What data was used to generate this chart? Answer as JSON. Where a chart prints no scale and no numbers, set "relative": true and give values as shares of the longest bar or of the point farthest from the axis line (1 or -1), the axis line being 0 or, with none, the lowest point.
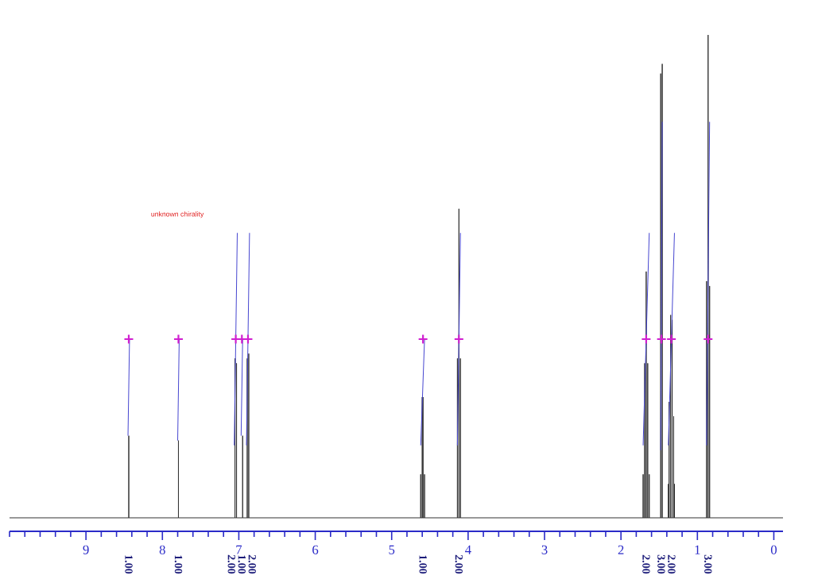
{
  "chart_data": {
    "type": "line",
    "relative": true,
    "xlim": [
      10,
      -0.12
    ],
    "xticks": [
      9,
      8,
      7,
      6,
      5,
      4,
      3,
      2,
      1,
      0
    ],
    "series": [
      {
        "color": "#333333",
        "x": [
          10,
          8.44,
          8.44,
          8.44,
          7.79,
          7.79,
          7.79,
          7.05,
          7.05,
          7.05,
          7.03,
          7.03,
          7.03,
          6.95,
          6.95,
          6.95,
          6.89,
          6.89,
          6.89,
          6.87,
          6.87,
          6.87,
          4.62,
          4.62,
          4.62,
          4.6,
          4.6,
          4.6,
          4.59,
          4.59,
          4.59,
          4.57,
          4.57,
          4.57,
          4.14,
          4.14,
          4.14,
          4.12,
          4.12,
          4.12,
          4.1,
          4.1,
          4.1,
          1.71,
          1.71,
          1.71,
          1.69,
          1.69,
          1.69,
          1.67,
          1.67,
          1.67,
          1.65,
          1.65,
          1.65,
          1.63,
          1.63,
          1.63,
          1.48,
          1.48,
          1.48,
          1.46,
          1.46,
          1.46,
          1.38,
          1.38,
          1.38,
          1.37,
          1.37,
          1.37,
          1.35,
          1.35,
          1.35,
          1.33,
          1.33,
          1.33,
          1.31,
          1.31,
          1.31,
          1.3,
          1.3,
          1.3,
          0.88,
          0.88,
          0.88,
          0.86,
          0.86,
          0.86,
          0.84,
          0.84,
          0.84,
          -0.12
        ],
        "values": [
          0,
          0,
          0.17,
          0,
          0,
          0.16,
          0,
          0,
          0.33,
          0,
          0,
          0.32,
          0,
          0,
          0.17,
          0,
          0,
          0.33,
          0,
          0,
          0.34,
          0,
          0,
          0.09,
          0,
          0,
          0.25,
          0,
          0,
          0.25,
          0,
          0,
          0.09,
          0,
          0,
          0.33,
          0,
          0,
          0.64,
          0,
          0,
          0.33,
          0,
          0,
          0.09,
          0,
          0,
          0.32,
          0,
          0,
          0.51,
          0,
          0,
          0.32,
          0,
          0,
          0.09,
          0,
          0,
          0.92,
          0,
          0,
          0.94,
          0,
          0,
          0.07,
          0,
          0,
          0.24,
          0,
          0,
          0.42,
          0,
          0,
          0.41,
          0,
          0,
          0.21,
          0,
          0,
          0.07,
          0,
          0,
          0.49,
          0,
          0,
          1,
          0,
          0,
          0.48,
          0,
          0
        ]
      },
      {
        "color": "#4545d0",
        "x": [
          8.45,
          8.43
        ],
        "values": [
          0.17,
          0.37
        ]
      },
      {
        "color": "#4545d0",
        "x": [
          7.8,
          7.78
        ],
        "values": [
          0.16,
          0.37
        ]
      },
      {
        "color": "#4545d0",
        "x": [
          7.06,
          7.02
        ],
        "values": [
          0.15,
          0.59
        ]
      },
      {
        "color": "#4545d0",
        "x": [
          6.97,
          6.95
        ],
        "values": [
          0.17,
          0.37
        ]
      },
      {
        "color": "#4545d0",
        "x": [
          6.9,
          6.86
        ],
        "values": [
          0.15,
          0.59
        ]
      },
      {
        "color": "#4545d0",
        "x": [
          4.62,
          4.57
        ],
        "values": [
          0.15,
          0.37
        ]
      },
      {
        "color": "#4545d0",
        "x": [
          4.14,
          4.1
        ],
        "values": [
          0.15,
          0.59
        ]
      },
      {
        "color": "#4545d0",
        "x": [
          1.71,
          1.63
        ],
        "values": [
          0.15,
          0.59
        ]
      },
      {
        "color": "#4545d0",
        "x": [
          1.48,
          1.46
        ],
        "values": [
          0.14,
          0.82
        ]
      },
      {
        "color": "#4545d0",
        "x": [
          1.38,
          1.3
        ],
        "values": [
          0.15,
          0.59
        ]
      },
      {
        "color": "#4545d0",
        "x": [
          0.88,
          0.84
        ],
        "values": [
          0.15,
          0.82
        ]
      },
      {
        "type": "scatter",
        "color": "#d020d0",
        "marker": "cross",
        "x": [
          8.44,
          7.79,
          7.04,
          6.96,
          6.88,
          4.59,
          4.12,
          1.67,
          1.47,
          1.34,
          0.86
        ],
        "values": [
          0.37,
          0.37,
          0.37,
          0.37,
          0.37,
          0.37,
          0.37,
          0.37,
          0.37,
          0.37,
          0.37
        ]
      }
    ],
    "annotations": [
      "1.00",
      "1.00",
      "2.00",
      "1.00",
      "2.00",
      "1.00",
      "2.00",
      "2.00",
      "3.00",
      "2.00",
      "3.00",
      "unknown chirality"
    ]
  }
}
